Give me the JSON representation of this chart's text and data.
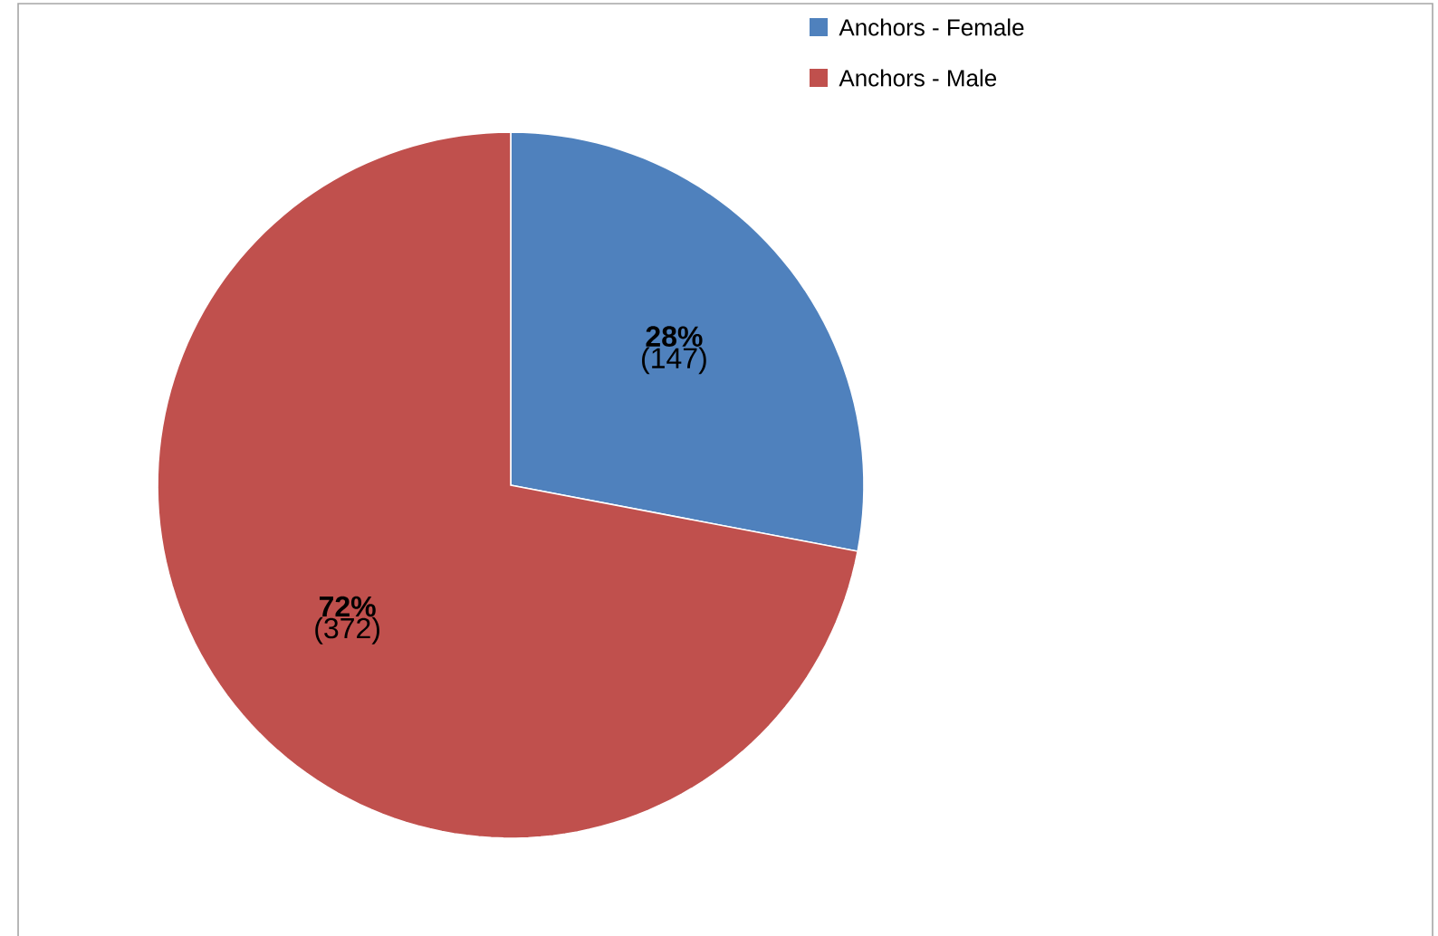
{
  "chart_data": {
    "type": "pie",
    "categories": [
      "Anchors - Female",
      "Anchors - Male"
    ],
    "values": [
      28,
      72
    ],
    "colors": [
      "#4f81bd",
      "#c0504d"
    ],
    "value_labels": [
      "**28%** (147)",
      "**72%** (372)"
    ],
    "legend": "top right"
  }
}
